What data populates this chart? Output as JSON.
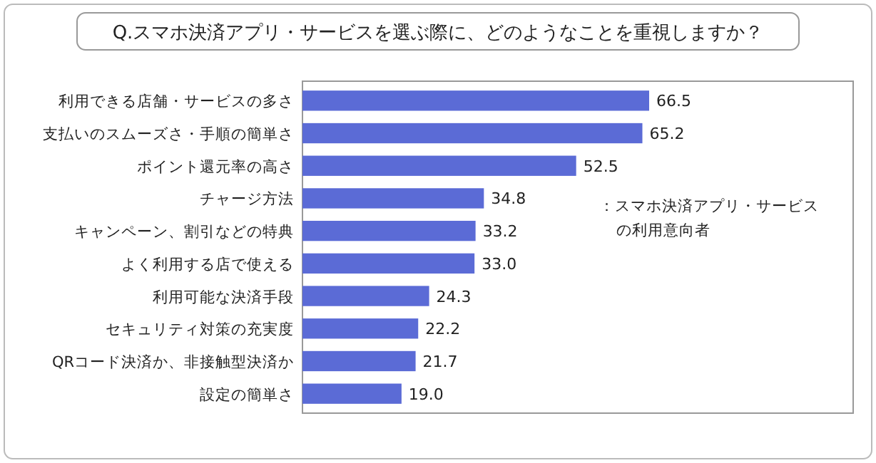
{
  "chart_data": {
    "type": "bar",
    "orientation": "horizontal",
    "title": "Q.スマホ決済アプリ・サービスを選ぶ際に、どのようなことを重視しますか？",
    "categories": [
      "利用できる店舗・サービスの多さ",
      "支払いのスムーズさ・手順の簡単さ",
      "ポイント還元率の高さ",
      "チャージ方法",
      "キャンペーン、割引などの特典",
      "よく利用する店で使える",
      "利用可能な決済手段",
      "セキュリティ対策の充実度",
      "QRコード決済か、非接触型決済か",
      "設定の簡単さ"
    ],
    "values": [
      66.5,
      65.2,
      52.5,
      34.8,
      33.2,
      33.0,
      24.3,
      22.2,
      21.7,
      19.0
    ],
    "value_labels": [
      "66.5",
      "65.2",
      "52.5",
      "34.8",
      "33.2",
      "33.0",
      "24.3",
      "22.2",
      "21.7",
      "19.0"
    ],
    "color": "#5b6bd6",
    "annotations": [
      "：スマホ決済アプリ・サービス",
      "の利用意向者"
    ]
  }
}
